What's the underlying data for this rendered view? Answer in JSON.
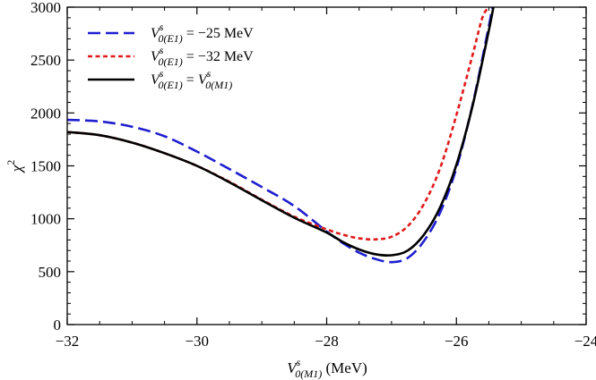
{
  "chart_data": {
    "type": "line",
    "title": "",
    "xlabel": {
      "base": "V",
      "sup": "s",
      "sub": "0(M1)",
      "unit": " (MeV)"
    },
    "ylabel": {
      "base": "χ",
      "sup": "2"
    },
    "xlim": [
      -32,
      -24
    ],
    "ylim": [
      0,
      3000
    ],
    "x_ticks": [
      -32,
      -30,
      -28,
      -26,
      -24
    ],
    "x_tick_labels": [
      "−32",
      "−30",
      "−28",
      "−26",
      "−24"
    ],
    "y_ticks": [
      0,
      500,
      1000,
      1500,
      2000,
      2500,
      3000
    ],
    "y_tick_labels": [
      "0",
      "500",
      "1000",
      "1500",
      "2000",
      "2500",
      "3000"
    ],
    "grid": false,
    "legend_position": "top-left",
    "series": [
      {
        "name": "V^s_0(E1) = −25 MeV",
        "legend": {
          "base": "V",
          "sup": "s",
          "sub": "0(E1)",
          "rest": " = −25 MeV"
        },
        "color": "#1f1fd0",
        "style": "long-dash",
        "x": [
          -32,
          -31.5,
          -31,
          -30.5,
          -30,
          -29.5,
          -29,
          -28.5,
          -28,
          -27.75,
          -27.5,
          -27.25,
          -27,
          -26.75,
          -26.5,
          -26.25,
          -26,
          -25.75,
          -25.5,
          -25.45
        ],
        "y": [
          1935,
          1920,
          1870,
          1780,
          1635,
          1470,
          1300,
          1120,
          880,
          770,
          680,
          620,
          590,
          630,
          790,
          1060,
          1480,
          2080,
          2820,
          3000
        ]
      },
      {
        "name": "V^s_0(E1) = −32 MeV",
        "legend": {
          "base": "V",
          "sup": "s",
          "sub": "0(E1)",
          "rest": " = −32 MeV"
        },
        "color": "#e01a1a",
        "style": "short-dash",
        "x": [
          -32,
          -31.5,
          -31,
          -30.5,
          -30,
          -29.5,
          -29,
          -28.5,
          -28,
          -27.75,
          -27.5,
          -27.25,
          -27,
          -26.75,
          -26.5,
          -26.25,
          -26,
          -25.75,
          -25.6,
          -25.5
        ],
        "y": [
          1820,
          1790,
          1720,
          1620,
          1500,
          1350,
          1180,
          1020,
          900,
          850,
          815,
          805,
          830,
          930,
          1140,
          1480,
          1980,
          2550,
          2900,
          3000
        ]
      },
      {
        "name": "V^s_0(E1) = V^s_0(M1)",
        "legend": {
          "base": "V",
          "sup": "s",
          "sub": "0(E1)",
          "rest": " = ",
          "base2": "V",
          "sup2": "s",
          "sub2": "0(M1)"
        },
        "color": "#000000",
        "style": "solid",
        "x": [
          -32,
          -31.5,
          -31,
          -30.5,
          -30,
          -29.5,
          -29,
          -28.5,
          -28,
          -27.75,
          -27.5,
          -27.25,
          -27,
          -26.75,
          -26.5,
          -26.25,
          -26,
          -25.75,
          -25.5,
          -25.43
        ],
        "y": [
          1820,
          1790,
          1720,
          1620,
          1500,
          1345,
          1175,
          1010,
          870,
          780,
          710,
          665,
          655,
          700,
          850,
          1110,
          1510,
          2070,
          2780,
          3000
        ]
      }
    ]
  }
}
